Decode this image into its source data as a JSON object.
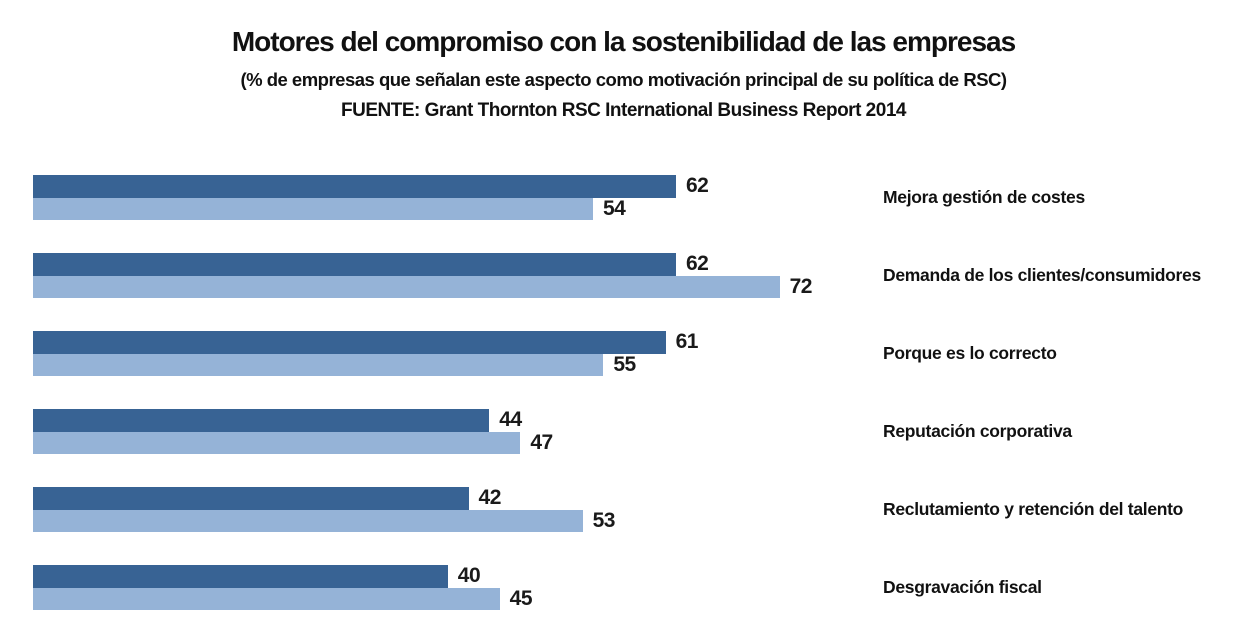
{
  "header": {
    "title": "Motores del compromiso con la sostenibilidad de las empresas",
    "subtitle": "(% de empresas que señalan este aspecto como motivación principal de su política de RSC)",
    "source": "FUENTE: Grant Thornton RSC International Business Report 2014"
  },
  "colors": {
    "dark_bar": "#386394",
    "light_bar": "#95B3D7",
    "text": "#000000",
    "background": "#FFFFFF"
  },
  "chart_data": {
    "type": "bar",
    "orientation": "horizontal",
    "title": "Motores del compromiso con la sostenibilidad de las empresas",
    "subtitle": "(% de empresas que señalan este aspecto como motivación principal de su política de RSC)",
    "source": "FUENTE: Grant Thornton RSC International Business Report 2014",
    "categories": [
      "Mejora gestión de costes",
      "Demanda de los clientes/consumidores",
      "Porque es lo correcto",
      "Reputación corporativa",
      "Reclutamiento y retención del talento",
      "Desgravación fiscal"
    ],
    "series": [
      {
        "name": "dark-blue-series",
        "color": "#386394",
        "values": [
          62,
          62,
          61,
          44,
          42,
          40
        ]
      },
      {
        "name": "light-blue-series",
        "color": "#95B3D7",
        "values": [
          54,
          72,
          55,
          47,
          53,
          45
        ]
      }
    ],
    "xlim": [
      0,
      100
    ],
    "value_labels": true,
    "legend": "none",
    "grid": false,
    "category_label_position": "right"
  }
}
